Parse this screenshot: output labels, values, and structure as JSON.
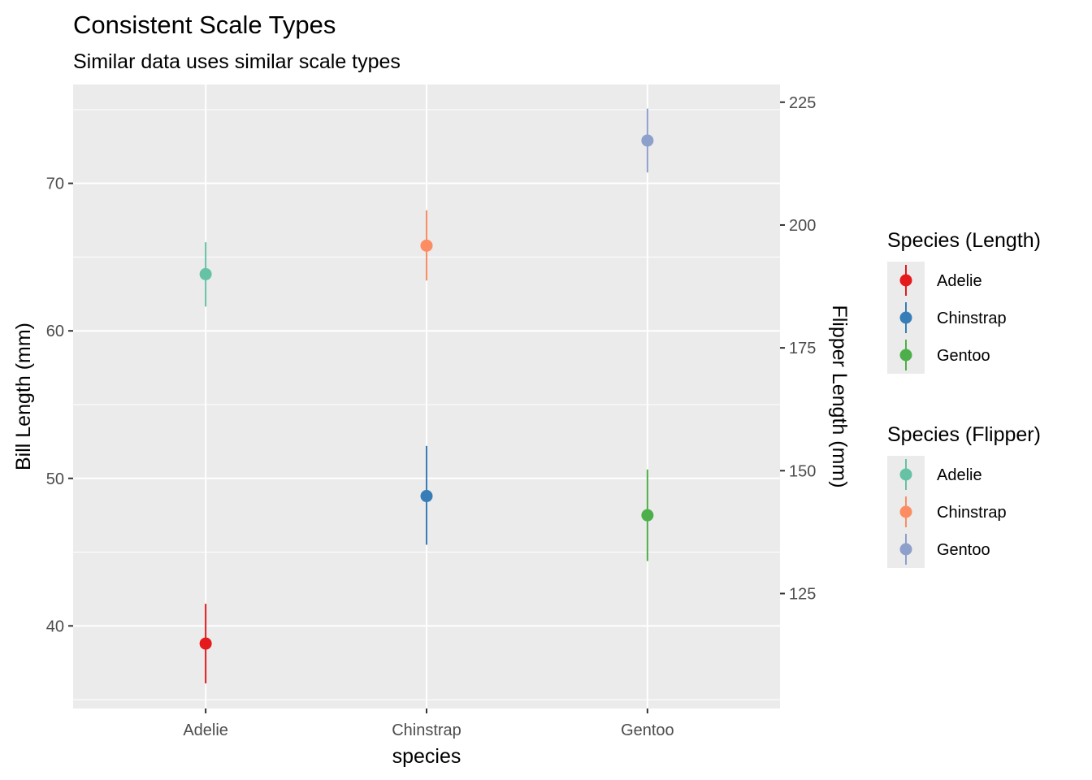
{
  "chart_data": {
    "type": "scatter",
    "title": "Consistent Scale Types",
    "subtitle": "Similar data uses similar scale types",
    "xlabel": "species",
    "ylabel": "Bill Length (mm)",
    "y2label": "Flipper Length (mm)",
    "categories": [
      "Adelie",
      "Chinstrap",
      "Gentoo"
    ],
    "ylim": [
      34.4,
      76.7
    ],
    "y2lim": [
      101.6,
      228.6
    ],
    "yticks": [
      40,
      50,
      60,
      70
    ],
    "y2ticks": [
      125,
      150,
      175,
      200,
      225
    ],
    "grid": true,
    "legend_position": "right",
    "series": [
      {
        "name": "Species (Length)",
        "axis": "left",
        "points": [
          {
            "category": "Adelie",
            "label": "Adelie",
            "mean": 38.8,
            "low": 36.1,
            "high": 41.5,
            "color": "#E41A1C"
          },
          {
            "category": "Chinstrap",
            "label": "Chinstrap",
            "mean": 48.8,
            "low": 45.5,
            "high": 52.2,
            "color": "#377EB8"
          },
          {
            "category": "Gentoo",
            "label": "Gentoo",
            "mean": 47.5,
            "low": 44.4,
            "high": 50.6,
            "color": "#4DAF4A"
          }
        ]
      },
      {
        "name": "Species (Flipper)",
        "axis": "right",
        "points": [
          {
            "category": "Adelie",
            "label": "Adelie",
            "mean": 190.0,
            "low": 183.4,
            "high": 196.5,
            "color": "#66C2A5"
          },
          {
            "category": "Chinstrap",
            "label": "Chinstrap",
            "mean": 195.8,
            "low": 188.7,
            "high": 203.0,
            "color": "#FC8D62"
          },
          {
            "category": "Gentoo",
            "label": "Gentoo",
            "mean": 217.2,
            "low": 210.7,
            "high": 223.7,
            "color": "#8DA0CB"
          }
        ]
      }
    ]
  }
}
